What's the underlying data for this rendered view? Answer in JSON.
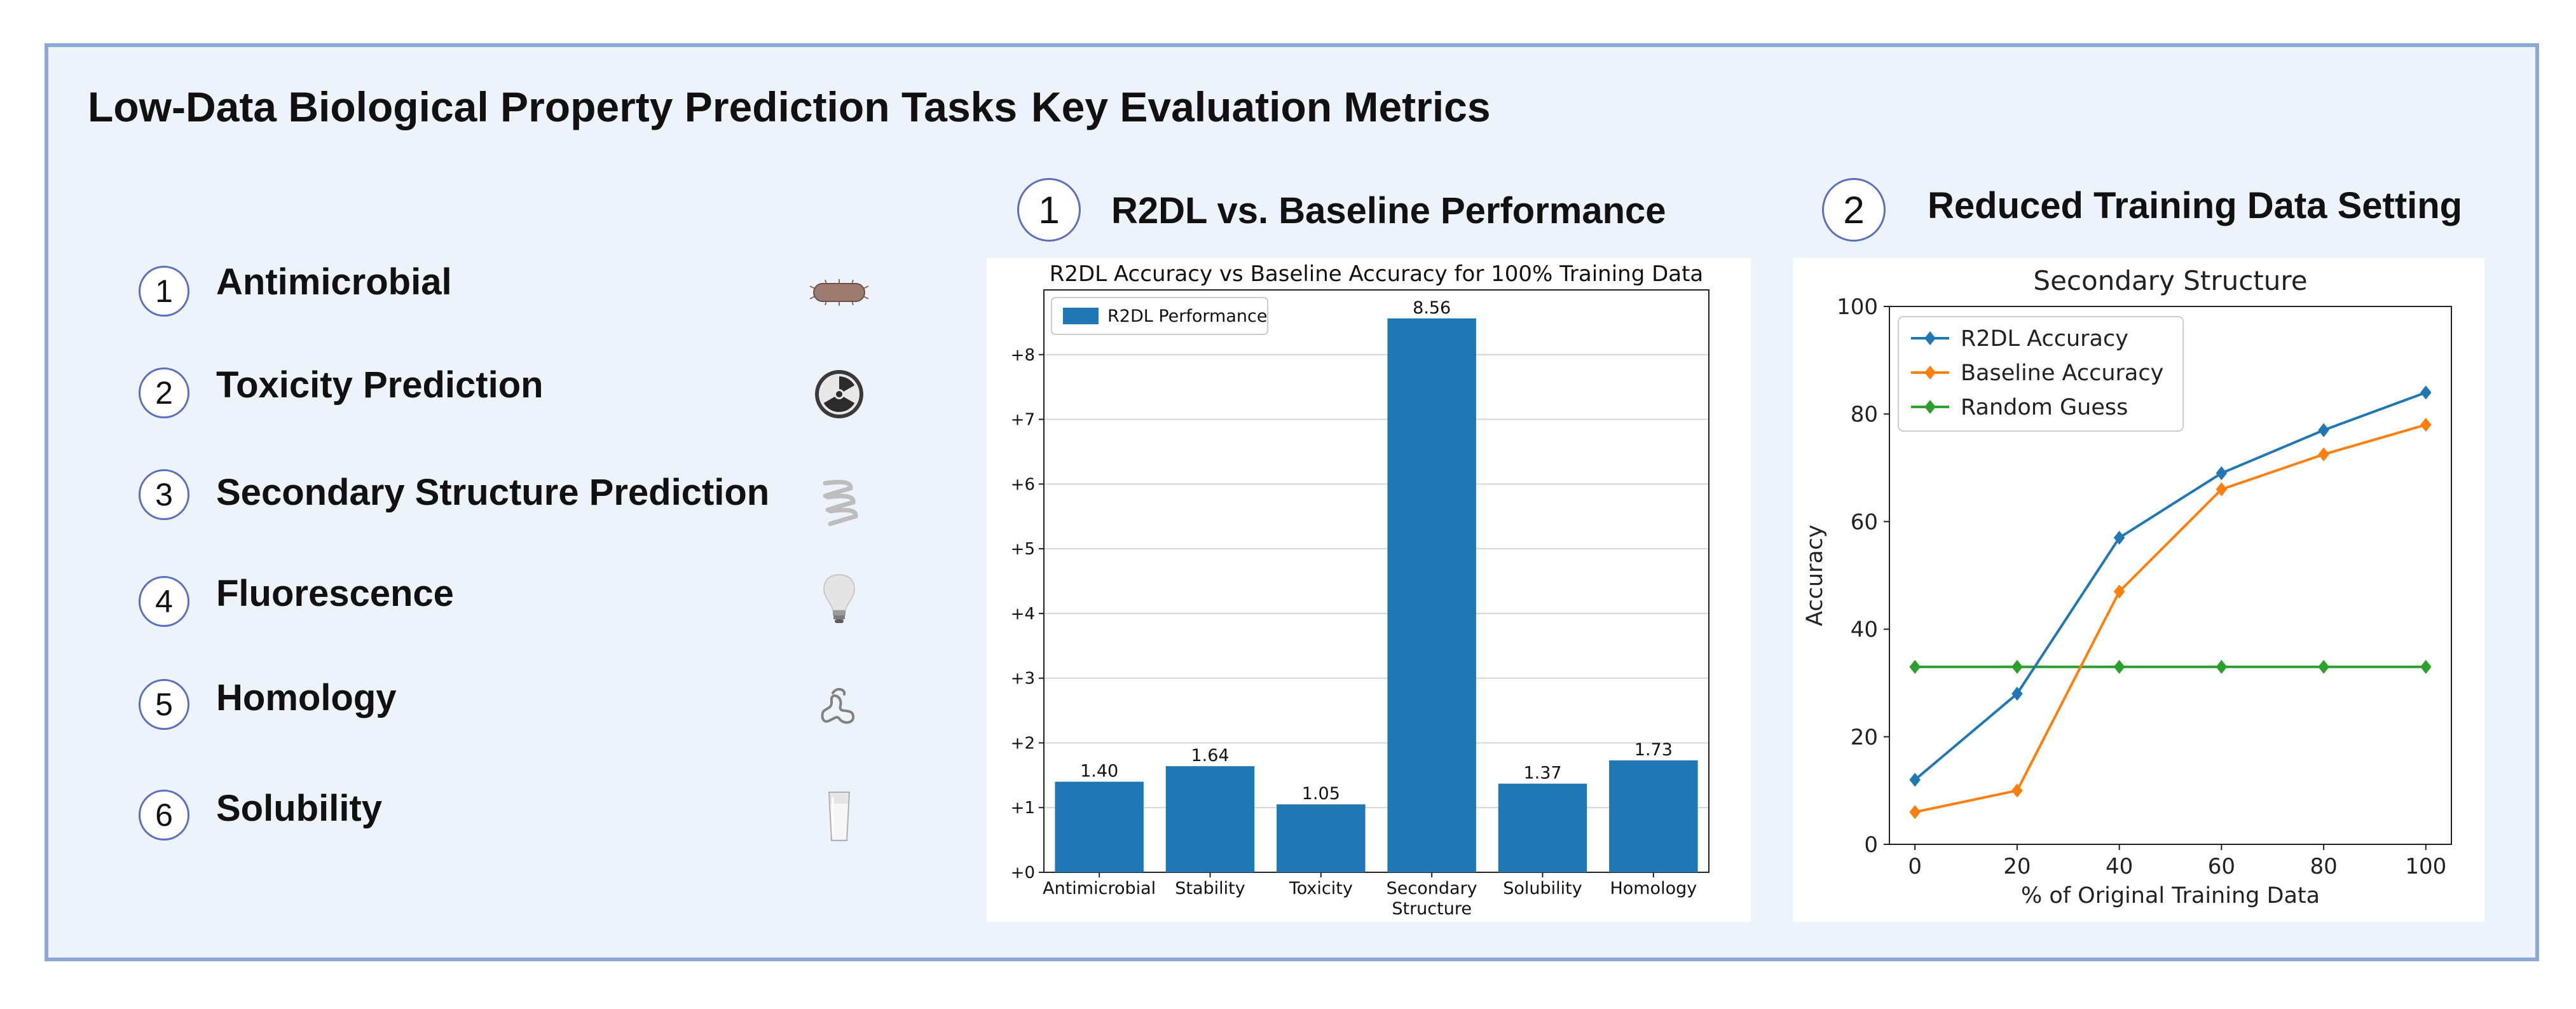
{
  "left_section": {
    "title": "Low-Data Biological Property Prediction Tasks",
    "tasks": [
      {
        "number": "1",
        "label": "Antimicrobial",
        "icon": "bacterium-icon"
      },
      {
        "number": "2",
        "label": "Toxicity Prediction",
        "icon": "radiation-icon"
      },
      {
        "number": "3",
        "label": "Secondary Structure Prediction",
        "icon": "helix-icon"
      },
      {
        "number": "4",
        "label": "Fluorescence",
        "icon": "lightbulb-icon"
      },
      {
        "number": "5",
        "label": "Homology",
        "icon": "protein-fold-icon"
      },
      {
        "number": "6",
        "label": "Solubility",
        "icon": "water-glass-icon"
      }
    ]
  },
  "right_section": {
    "title": "Key Evaluation Metrics",
    "metric1": {
      "number": "1",
      "title": "R2DL vs. Baseline Performance"
    },
    "metric2": {
      "number": "2",
      "title": "Reduced Training Data Setting"
    }
  },
  "colors": {
    "bar": "#1f77b4",
    "r2dl": "#1f77b4",
    "baseline": "#ff7f0e",
    "random": "#2ca02c",
    "frame_border": "#8da9d6",
    "frame_bg": "#ecf3fb"
  },
  "chart_data": [
    {
      "type": "bar",
      "title": "R2DL Accuracy vs Baseline Accuracy for 100% Training Data",
      "categories": [
        "Antimicrobial",
        "Stability",
        "Toxicity",
        "Secondary Structure",
        "Solubility",
        "Homology"
      ],
      "category_lines": [
        [
          "Antimicrobial"
        ],
        [
          "Stability"
        ],
        [
          "Toxicity"
        ],
        [
          "Secondary",
          "Structure"
        ],
        [
          "Solubility"
        ],
        [
          "Homology"
        ]
      ],
      "values": [
        1.4,
        1.64,
        1.05,
        8.56,
        1.37,
        1.73
      ],
      "value_labels": [
        "1.40",
        "1.64",
        "1.05",
        "8.56",
        "1.37",
        "1.73"
      ],
      "series": [
        {
          "name": "R2DL Performance",
          "values": [
            1.4,
            1.64,
            1.05,
            8.56,
            1.37,
            1.73
          ]
        }
      ],
      "yticks": [
        0,
        1,
        2,
        3,
        4,
        5,
        6,
        7,
        8
      ],
      "ytick_labels": [
        "+0",
        "+1",
        "+2",
        "+3",
        "+4",
        "+5",
        "+6",
        "+7",
        "+8"
      ],
      "ylim": [
        0,
        9
      ],
      "xlabel": "",
      "ylabel": "",
      "grid": "horizontal",
      "legend_position": "top-left"
    },
    {
      "type": "line",
      "title": "Secondary Structure",
      "xlabel": "% of Original Training Data",
      "ylabel": "Accuracy",
      "x": [
        0,
        20,
        40,
        60,
        80,
        100
      ],
      "xlim": [
        -5,
        105
      ],
      "ylim": [
        0,
        100
      ],
      "xticks": [
        0,
        20,
        40,
        60,
        80,
        100
      ],
      "yticks": [
        0,
        20,
        40,
        60,
        80,
        100
      ],
      "series": [
        {
          "name": "R2DL Accuracy",
          "values": [
            12,
            28,
            57,
            69,
            77,
            84
          ]
        },
        {
          "name": "Baseline Accuracy",
          "values": [
            6,
            10,
            47,
            66,
            72.5,
            78
          ]
        },
        {
          "name": "Random Guess",
          "values": [
            33,
            33,
            33,
            33,
            33,
            33
          ]
        }
      ],
      "grid": false,
      "legend_position": "top-left"
    }
  ]
}
